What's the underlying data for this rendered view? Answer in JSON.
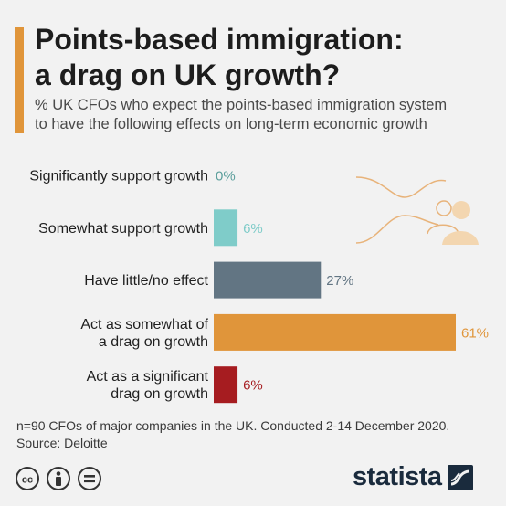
{
  "header": {
    "title_line1": "Points-based immigration:",
    "title_line2": "a drag on UK growth?",
    "subtitle_line1": "% UK CFOs who expect the points-based immigration system",
    "subtitle_line2": "to have the following effects on long-term economic growth"
  },
  "chart_data": {
    "type": "bar",
    "orientation": "horizontal",
    "categories": [
      [
        "Significantly support growth"
      ],
      [
        "Somewhat support growth"
      ],
      [
        "Have little/no effect"
      ],
      [
        "Act as somewhat of",
        "a drag on growth"
      ],
      [
        "Act as a significant",
        "drag on growth"
      ]
    ],
    "values": [
      0,
      6,
      27,
      61,
      6
    ],
    "value_labels": [
      "0%",
      "6%",
      "27%",
      "61%",
      "6%"
    ],
    "colors": [
      "#7fccc9",
      "#7fccc9",
      "#627583",
      "#e0953a",
      "#a61c20"
    ],
    "label_colors": [
      "#5a9e9b",
      "#7fccc9",
      "#627583",
      "#e0953a",
      "#a61c20"
    ],
    "xlim": [
      0,
      61
    ],
    "grid": false,
    "legend": "none"
  },
  "footer": {
    "note": "n=90 CFOs of major companies in the UK. Conducted 2-14 December 2020.",
    "source": "Source: Deloitte",
    "brand": "statista",
    "icons": [
      "cc-icon",
      "person-icon",
      "equals-icon"
    ]
  },
  "colors": {
    "accent": "#e0953a",
    "background": "#f2f2f2"
  }
}
